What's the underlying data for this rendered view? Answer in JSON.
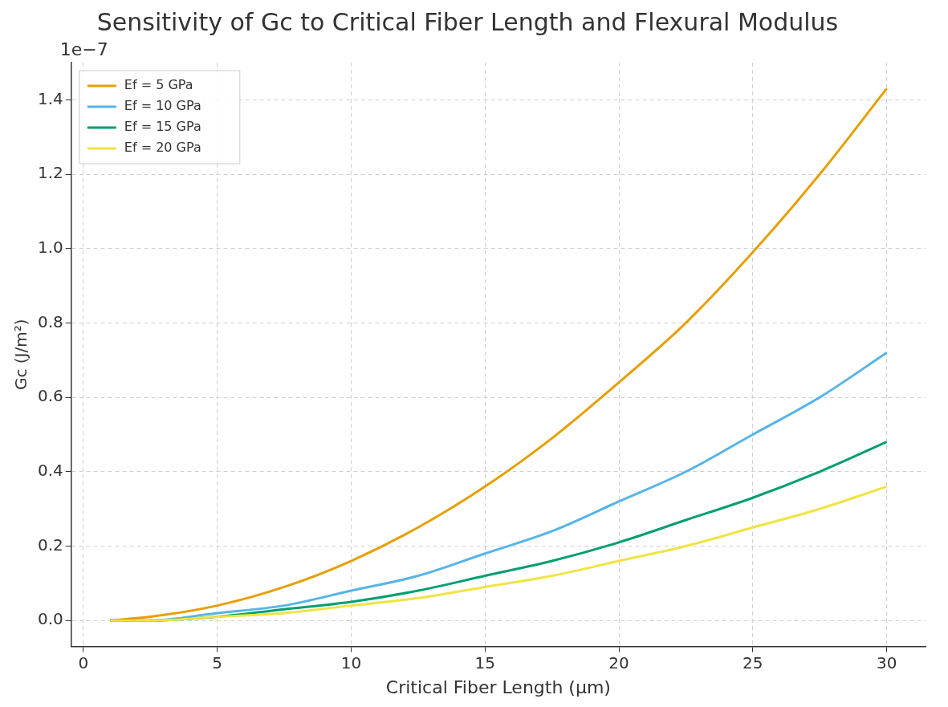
{
  "chart_data": {
    "type": "line",
    "title": "Sensitivity of Gc to Critical Fiber Length and Flexural Modulus",
    "xlabel": "Critical Fiber Length (µm)",
    "ylabel": "Gc (J/m²)",
    "annotations": [
      "1e−7"
    ],
    "x": [
      1,
      2.5,
      5,
      7.5,
      10,
      12.5,
      15,
      17.5,
      20,
      22.5,
      25,
      27.5,
      30
    ],
    "series": [
      {
        "name": "Ef = 5 GPa",
        "color": "#e69f00",
        "values": [
          0.0,
          0.01,
          0.04,
          0.09,
          0.16,
          0.25,
          0.36,
          0.49,
          0.64,
          0.8,
          0.99,
          1.2,
          1.43
        ]
      },
      {
        "name": "Ef = 10 GPa",
        "color": "#56b4e9",
        "values": [
          0.0,
          0.0,
          0.02,
          0.04,
          0.08,
          0.12,
          0.18,
          0.24,
          0.32,
          0.4,
          0.5,
          0.6,
          0.72
        ]
      },
      {
        "name": "Ef = 15 GPa",
        "color": "#009e73",
        "values": [
          0.0,
          0.0,
          0.01,
          0.03,
          0.05,
          0.08,
          0.12,
          0.16,
          0.21,
          0.27,
          0.33,
          0.4,
          0.48
        ]
      },
      {
        "name": "Ef = 20 GPa",
        "color": "#f0e442",
        "values": [
          0.0,
          0.0,
          0.01,
          0.02,
          0.04,
          0.06,
          0.09,
          0.12,
          0.16,
          0.2,
          0.25,
          0.3,
          0.36
        ]
      }
    ],
    "xlim": [
      -0.45,
      31.45
    ],
    "xticks": [
      0,
      5,
      10,
      15,
      20,
      25,
      30
    ],
    "ylim": [
      -0.07,
      1.5
    ],
    "yticks": [
      {
        "value": 0,
        "label": "0.0"
      },
      {
        "value": 0.2,
        "label": "0.2"
      },
      {
        "value": 0.4,
        "label": "0.4"
      },
      {
        "value": 0.6,
        "label": "0.6"
      },
      {
        "value": 0.8,
        "label": "0.8"
      },
      {
        "value": 1.0,
        "label": "1.0"
      },
      {
        "value": 1.2,
        "label": "1.2"
      },
      {
        "value": 1.4,
        "label": "1.4"
      }
    ],
    "grid": true,
    "legend": "top left",
    "marker": "none",
    "line_style": "solid"
  }
}
